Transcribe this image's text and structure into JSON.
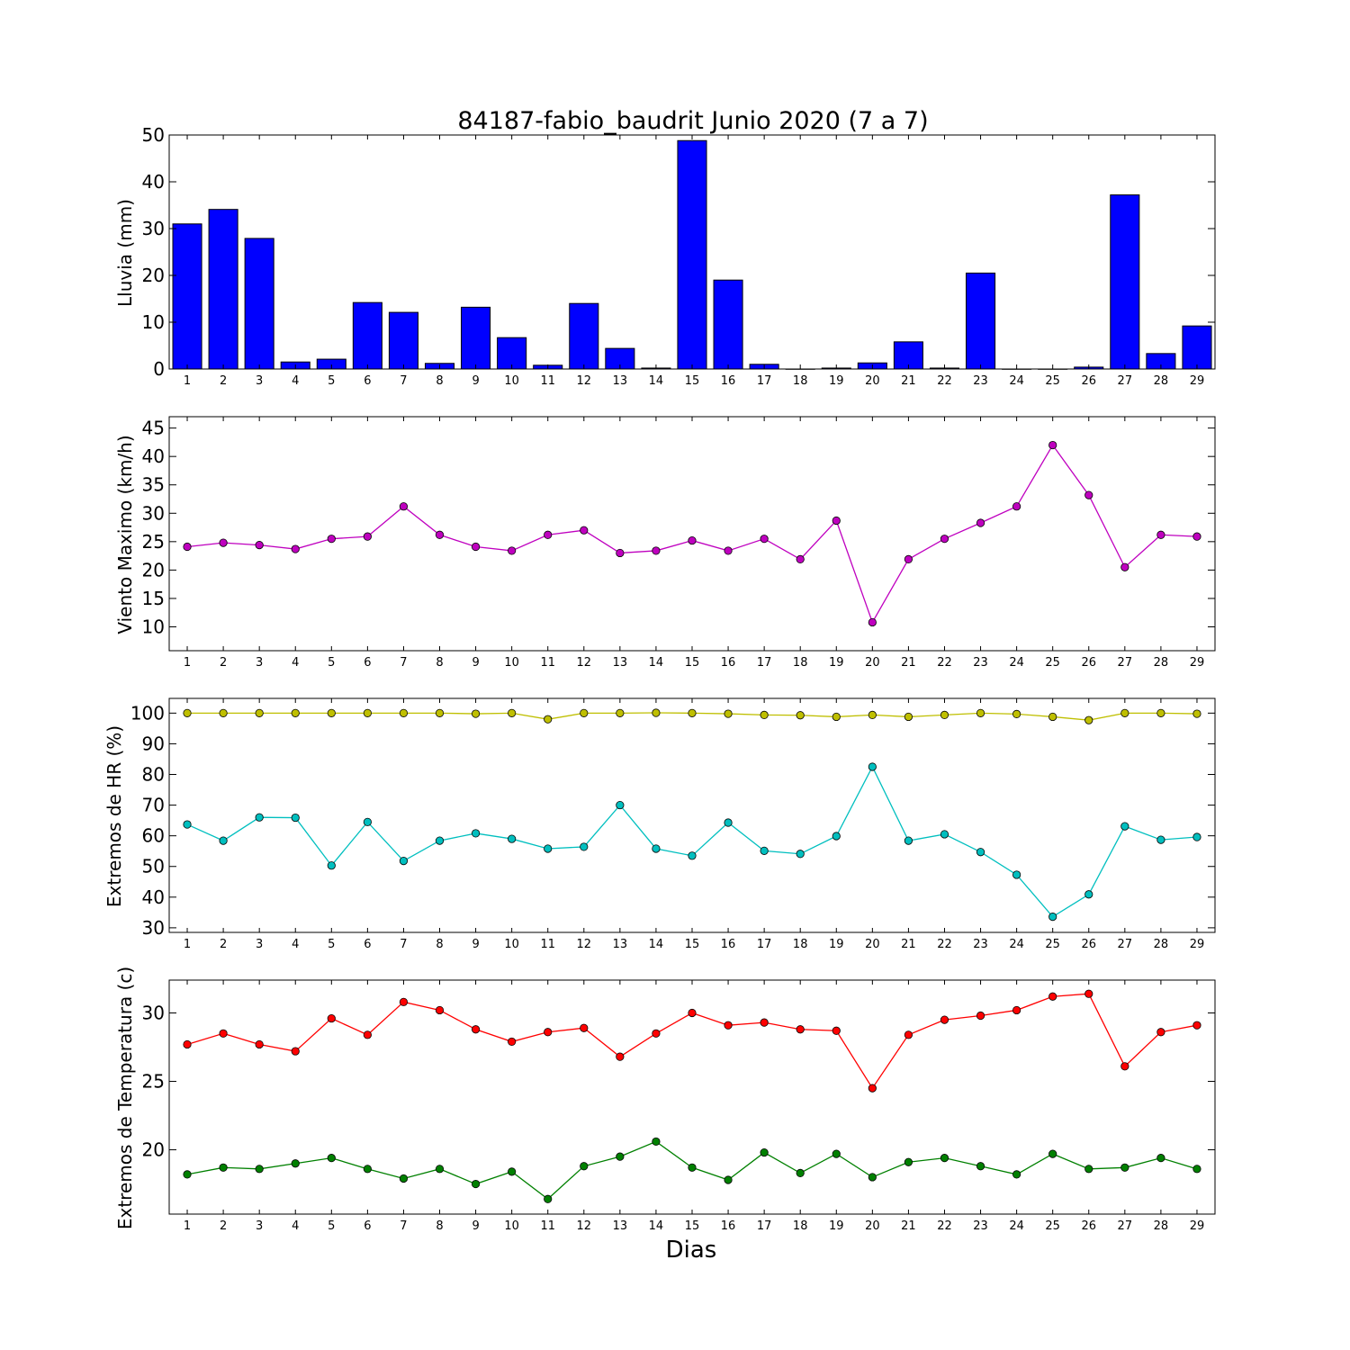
{
  "figure": {
    "title": "84187-fabio_baudrit Junio 2020  (7 a 7)",
    "xlabel": "Dias"
  },
  "chart_data": [
    {
      "type": "bar",
      "ylabel": "Lluvia (mm)",
      "ylim": [
        0,
        50
      ],
      "yticks": [
        0,
        10,
        20,
        30,
        40,
        50
      ],
      "x": [
        1,
        2,
        3,
        4,
        5,
        6,
        7,
        8,
        9,
        10,
        11,
        12,
        13,
        14,
        15,
        16,
        17,
        18,
        19,
        20,
        21,
        22,
        23,
        24,
        25,
        26,
        27,
        28,
        29
      ],
      "series": [
        {
          "color": "#0000ff",
          "values": [
            31.0,
            34.1,
            27.9,
            1.5,
            2.1,
            14.2,
            12.1,
            1.2,
            13.2,
            6.7,
            0.8,
            14.0,
            4.4,
            0.2,
            48.8,
            19.0,
            1.0,
            0.0,
            0.2,
            1.3,
            5.8,
            0.2,
            20.5,
            0.0,
            0.0,
            0.4,
            37.2,
            3.3,
            9.2
          ]
        }
      ]
    },
    {
      "type": "line",
      "ylabel": "Viento Maximo (km/h)",
      "ylim": [
        5.8,
        47
      ],
      "yticks": [
        10,
        15,
        20,
        25,
        30,
        35,
        40,
        45
      ],
      "x": [
        1,
        2,
        3,
        4,
        5,
        6,
        7,
        8,
        9,
        10,
        11,
        12,
        13,
        14,
        15,
        16,
        17,
        18,
        19,
        20,
        21,
        22,
        23,
        24,
        25,
        26,
        27,
        28,
        29
      ],
      "series": [
        {
          "color": "#bf00bf",
          "values": [
            24.1,
            24.8,
            24.4,
            23.7,
            25.5,
            25.9,
            31.2,
            26.2,
            24.1,
            23.4,
            26.2,
            27.0,
            23.0,
            23.4,
            25.2,
            23.4,
            25.5,
            21.9,
            28.7,
            10.8,
            21.9,
            25.5,
            28.3,
            31.2,
            42.0,
            33.2,
            20.5,
            26.2,
            25.9
          ]
        }
      ]
    },
    {
      "type": "line",
      "ylabel": "Extremos de HR (%)",
      "ylim": [
        28.5,
        104.8
      ],
      "yticks": [
        30,
        40,
        50,
        60,
        70,
        80,
        90,
        100
      ],
      "x": [
        1,
        2,
        3,
        4,
        5,
        6,
        7,
        8,
        9,
        10,
        11,
        12,
        13,
        14,
        15,
        16,
        17,
        18,
        19,
        20,
        21,
        22,
        23,
        24,
        25,
        26,
        27,
        28,
        29
      ],
      "series": [
        {
          "color": "#bfbf00",
          "values": [
            100,
            100,
            100,
            100,
            100,
            100,
            100,
            100,
            99.8,
            100,
            98.0,
            100,
            100,
            100.1,
            100,
            99.8,
            99.4,
            99.3,
            98.8,
            99.4,
            98.8,
            99.4,
            100,
            99.7,
            98.8,
            97.7,
            100,
            100,
            99.8
          ]
        },
        {
          "color": "#00bfbf",
          "values": [
            63.7,
            58.4,
            66.0,
            65.9,
            50.3,
            64.5,
            51.8,
            58.4,
            60.8,
            59.0,
            55.8,
            56.4,
            70.0,
            55.8,
            53.5,
            64.3,
            55.1,
            54.1,
            59.9,
            82.5,
            58.4,
            60.5,
            54.7,
            47.3,
            33.6,
            40.9,
            63.1,
            58.7,
            59.6
          ]
        }
      ]
    },
    {
      "type": "line",
      "ylabel": "Extremos de Temperatura (c)",
      "ylim": [
        15.3,
        32.4
      ],
      "yticks": [
        20,
        25,
        30
      ],
      "x": [
        1,
        2,
        3,
        4,
        5,
        6,
        7,
        8,
        9,
        10,
        11,
        12,
        13,
        14,
        15,
        16,
        17,
        18,
        19,
        20,
        21,
        22,
        23,
        24,
        25,
        26,
        27,
        28,
        29
      ],
      "series": [
        {
          "color": "#ff0000",
          "values": [
            27.7,
            28.5,
            27.7,
            27.2,
            29.6,
            28.4,
            30.8,
            30.2,
            28.8,
            27.9,
            28.6,
            28.9,
            26.8,
            28.5,
            30.0,
            29.1,
            29.3,
            28.8,
            28.7,
            24.5,
            28.4,
            29.5,
            29.8,
            30.2,
            31.2,
            31.4,
            26.1,
            28.6,
            29.1
          ]
        },
        {
          "color": "#008000",
          "values": [
            18.2,
            18.7,
            18.6,
            19.0,
            19.4,
            18.6,
            17.9,
            18.6,
            17.5,
            18.4,
            16.4,
            18.8,
            19.5,
            20.6,
            18.7,
            17.8,
            19.8,
            18.3,
            19.7,
            18.0,
            19.1,
            19.4,
            18.8,
            18.2,
            19.7,
            18.6,
            18.7,
            19.4,
            18.6
          ]
        }
      ]
    }
  ]
}
